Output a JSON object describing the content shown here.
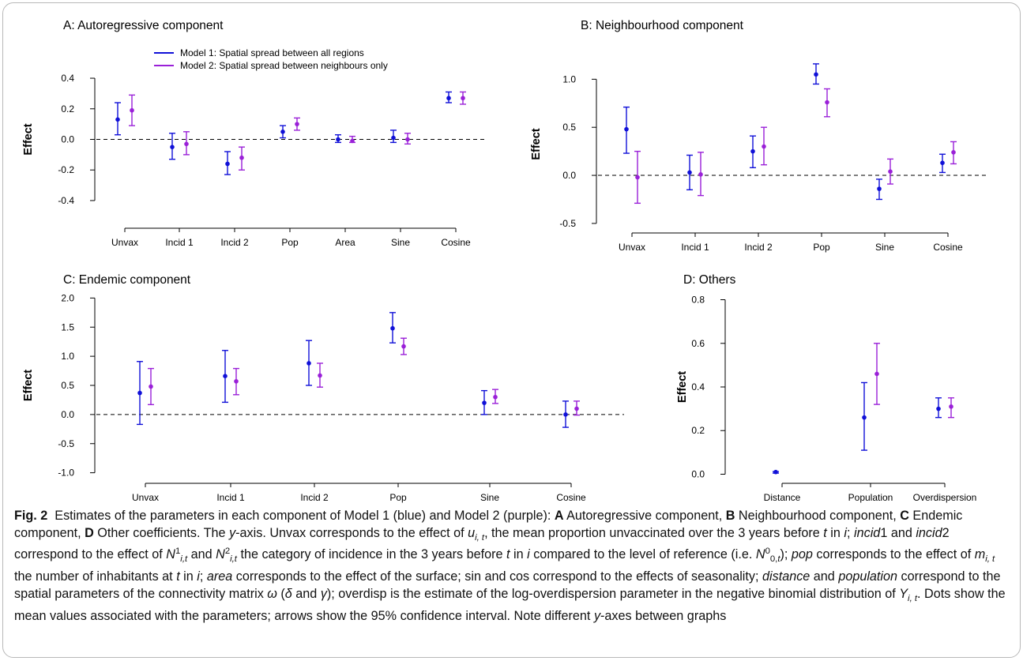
{
  "chart_data": [
    {
      "type": "errorbar",
      "title": "A: Autoregressive component",
      "ylabel": "Effect",
      "categories": [
        "Unvax",
        "Incid 1",
        "Incid 2",
        "Pop",
        "Area",
        "Sine",
        "Cosine"
      ],
      "ylim": [
        -0.55,
        0.55
      ],
      "yticks": [
        -0.4,
        -0.2,
        0.0,
        0.2,
        0.4
      ],
      "ytick_labels": [
        "-0.4",
        "-0.2",
        "0.0",
        "0.2",
        "0.4"
      ],
      "reference_line": 0,
      "legend": "top-left",
      "series": [
        {
          "name": "Model 1: Spatial spread between all regions",
          "color": "#1010d8",
          "mean": [
            0.13,
            -0.05,
            -0.16,
            0.05,
            0.0,
            0.01,
            0.27
          ],
          "lower": [
            0.03,
            -0.13,
            -0.23,
            0.01,
            -0.02,
            -0.02,
            0.24
          ],
          "upper": [
            0.24,
            0.04,
            -0.08,
            0.09,
            0.03,
            0.06,
            0.31
          ]
        },
        {
          "name": "Model 2: Spatial spread between neighbours only",
          "color": "#9a20d8",
          "mean": [
            0.19,
            -0.03,
            -0.12,
            0.1,
            -0.01,
            0.0,
            0.27
          ],
          "lower": [
            0.09,
            -0.1,
            -0.2,
            0.06,
            -0.02,
            -0.03,
            0.23
          ],
          "upper": [
            0.29,
            0.05,
            -0.05,
            0.14,
            0.02,
            0.04,
            0.31
          ]
        }
      ]
    },
    {
      "type": "errorbar",
      "title": "B: Neighbourhood component",
      "ylabel": "Effect",
      "categories": [
        "Unvax",
        "Incid 1",
        "Incid 2",
        "Pop",
        "Sine",
        "Cosine"
      ],
      "ylim": [
        -0.55,
        1.2
      ],
      "yticks": [
        -0.5,
        0.0,
        0.5,
        1.0
      ],
      "ytick_labels": [
        "-0.5",
        "0.0",
        "0.5",
        "1.0"
      ],
      "reference_line": 0,
      "series": [
        {
          "name": "Model 1: Spatial spread between all regions",
          "color": "#1010d8",
          "mean": [
            0.48,
            0.03,
            0.25,
            1.05,
            -0.14,
            0.13
          ],
          "lower": [
            0.23,
            -0.15,
            0.08,
            0.95,
            -0.25,
            0.03
          ],
          "upper": [
            0.71,
            0.21,
            0.41,
            1.16,
            -0.04,
            0.22
          ]
        },
        {
          "name": "Model 2: Spatial spread between neighbours only",
          "color": "#9a20d8",
          "mean": [
            -0.02,
            0.01,
            0.3,
            0.76,
            0.04,
            0.24
          ],
          "lower": [
            -0.29,
            -0.21,
            0.11,
            0.61,
            -0.09,
            0.12
          ],
          "upper": [
            0.25,
            0.24,
            0.5,
            0.9,
            0.17,
            0.35
          ]
        }
      ]
    },
    {
      "type": "errorbar",
      "title": "C: Endemic component",
      "ylabel": "Effect",
      "categories": [
        "Unvax",
        "Incid 1",
        "Incid 2",
        "Pop",
        "Sine",
        "Cosine"
      ],
      "ylim": [
        -1.1,
        2.1
      ],
      "yticks": [
        -1.0,
        -0.5,
        0.0,
        0.5,
        1.0,
        1.5,
        2.0
      ],
      "ytick_labels": [
        "-1.0",
        "-0.5",
        "0.0",
        "0.5",
        "1.0",
        "1.5",
        "2.0"
      ],
      "reference_line": 0,
      "series": [
        {
          "name": "Model 1: Spatial spread between all regions",
          "color": "#1010d8",
          "mean": [
            0.37,
            0.66,
            0.88,
            1.48,
            0.2,
            0.0
          ],
          "lower": [
            -0.17,
            0.21,
            0.5,
            1.23,
            0.0,
            -0.22
          ],
          "upper": [
            0.91,
            1.1,
            1.27,
            1.75,
            0.41,
            0.23
          ]
        },
        {
          "name": "Model 2: Spatial spread between neighbours only",
          "color": "#9a20d8",
          "mean": [
            0.48,
            0.57,
            0.67,
            1.17,
            0.3,
            0.1
          ],
          "lower": [
            0.17,
            0.34,
            0.47,
            1.03,
            0.19,
            -0.01
          ],
          "upper": [
            0.79,
            0.79,
            0.88,
            1.31,
            0.43,
            0.23
          ]
        }
      ]
    },
    {
      "type": "errorbar",
      "title": "D: Others",
      "ylabel": "Effect",
      "categories": [
        "Distance",
        "Population",
        "Overdispersion"
      ],
      "ylim": [
        -0.02,
        0.82
      ],
      "yticks": [
        0.0,
        0.2,
        0.4,
        0.6,
        0.8
      ],
      "ytick_labels": [
        "0.0",
        "0.2",
        "0.4",
        "0.6",
        "0.8"
      ],
      "reference_line": null,
      "series": [
        {
          "name": "Model 1: Spatial spread between all regions",
          "color": "#1010d8",
          "mean": [
            0.01,
            0.26,
            0.3
          ],
          "lower": [
            0.005,
            0.11,
            0.26
          ],
          "upper": [
            0.012,
            0.42,
            0.35
          ]
        },
        {
          "name": "Model 2: Spatial spread between neighbours only",
          "color": "#9a20d8",
          "mean": [
            null,
            0.46,
            0.31
          ],
          "lower": [
            null,
            0.32,
            0.26
          ],
          "upper": [
            null,
            0.6,
            0.35
          ]
        }
      ]
    }
  ],
  "caption": {
    "label": "Fig. 2",
    "text": "Estimates of the parameters in each component of Model 1 (blue) and Model 2 (purple): A Autoregressive component, B Neighbourhood component, C Endemic component, D Other coefficients. The y-axis. Unvax corresponds to the effect of u_{i,t}, the mean proportion unvaccinated over the 3 years before t in i; incid1 and incid2 correspond to the effect of N^1_{i,t} and N^2_{i,t} the category of incidence in the 3 years before t in i compared to the level of reference (i.e. N^0_{0,t}); pop corresponds to the effect of m_{i,t} the number of inhabitants at t in i; area corresponds to the effect of the surface; sin and cos correspond to the effects of seasonality; distance and population correspond to the spatial parameters of the connectivity matrix ω (δ and γ); overdisp is the estimate of the log-overdispersion parameter in the negative binomial distribution of Y_{i,t}. Dots show the mean values associated with the parameters; arrows show the 95% confidence interval. Note different y-axes between graphs"
  }
}
